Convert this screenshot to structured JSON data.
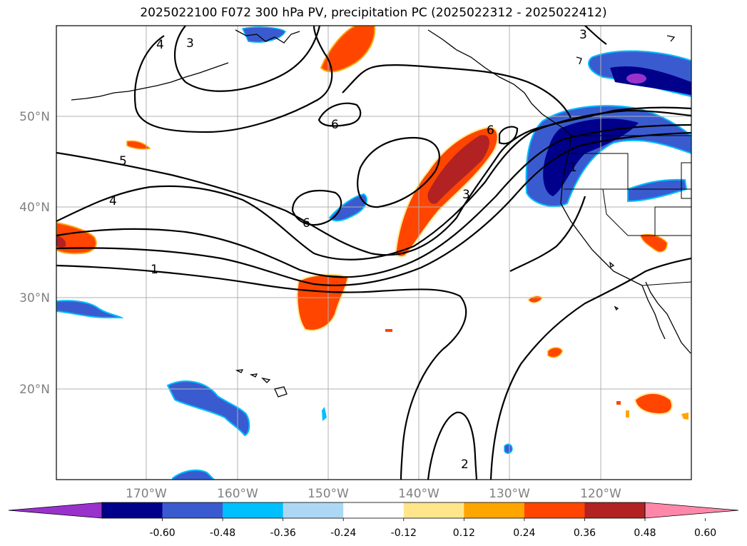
{
  "title": "2025022100 F072 300 hPa PV, precipitation PC (2025022312 - 2025022412)",
  "map": {
    "projection": "plate-carree",
    "lon_range": [
      -180,
      -110
    ],
    "lat_range": [
      10,
      60
    ],
    "gridlines": true,
    "lat_ticks": [
      {
        "lat": 50,
        "label": "50°N"
      },
      {
        "lat": 40,
        "label": "40°N"
      },
      {
        "lat": 30,
        "label": "30°N"
      },
      {
        "lat": 20,
        "label": "20°N"
      }
    ],
    "lon_ticks": [
      {
        "lon": -170,
        "label": "170°W"
      },
      {
        "lon": -160,
        "label": "160°W"
      },
      {
        "lon": -150,
        "label": "150°W"
      },
      {
        "lon": -140,
        "label": "140°W"
      },
      {
        "lon": -130,
        "label": "130°W"
      },
      {
        "lon": -120,
        "label": "120°W"
      }
    ],
    "contour_labels": [
      "4",
      "3",
      "3",
      "6",
      "5",
      "4",
      "6",
      "6",
      "3",
      "1",
      "1",
      "2"
    ]
  },
  "colorbar": {
    "extend": "both",
    "ticks": [
      "-0.60",
      "-0.48",
      "-0.36",
      "-0.24",
      "-0.12",
      "0.12",
      "0.24",
      "0.36",
      "0.48",
      "0.60"
    ],
    "colors": [
      "#9932cc",
      "#00008b",
      "#3a5bcf",
      "#00bfff",
      "#add8f5",
      "#ffffff",
      "#ffe68a",
      "#ffa500",
      "#ff4500",
      "#b22222",
      "#ff88aa"
    ]
  }
}
